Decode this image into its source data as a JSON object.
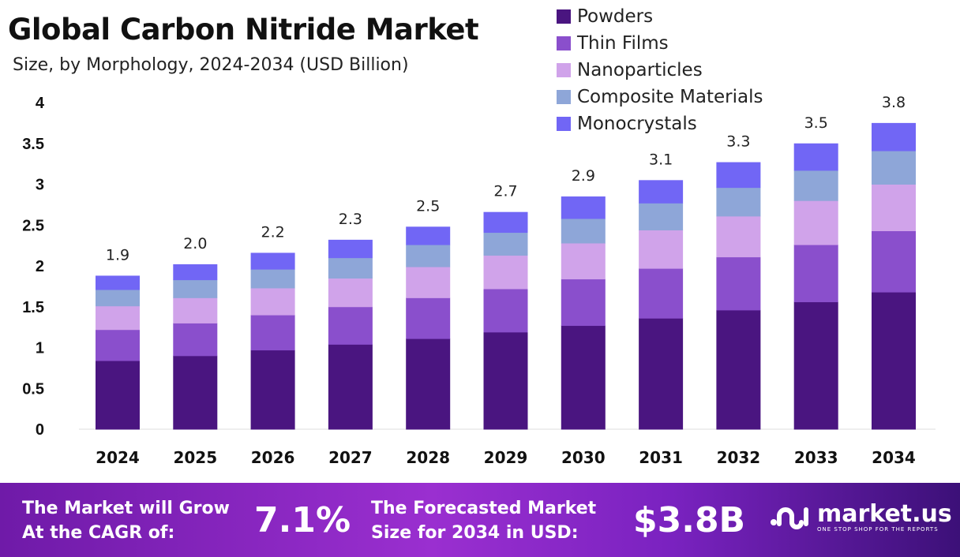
{
  "chart_data": {
    "type": "bar",
    "stacked": true,
    "title": "Global Carbon Nitride Market",
    "subtitle": "Size, by Morphology, 2024-2034 (USD Billion)",
    "categories": [
      "2024",
      "2025",
      "2026",
      "2027",
      "2028",
      "2029",
      "2030",
      "2031",
      "2032",
      "2033",
      "2034"
    ],
    "series": [
      {
        "name": "Powders",
        "color": "#4a1580",
        "values": [
          0.84,
          0.9,
          0.97,
          1.04,
          1.11,
          1.19,
          1.27,
          1.36,
          1.46,
          1.56,
          1.68
        ]
      },
      {
        "name": "Thin Films",
        "color": "#8a4fcc",
        "values": [
          0.38,
          0.4,
          0.43,
          0.46,
          0.5,
          0.53,
          0.57,
          0.61,
          0.65,
          0.7,
          0.75
        ]
      },
      {
        "name": "Nanoparticles",
        "color": "#d0a3ea",
        "values": [
          0.29,
          0.31,
          0.33,
          0.35,
          0.38,
          0.41,
          0.44,
          0.47,
          0.5,
          0.54,
          0.57
        ]
      },
      {
        "name": "Composite Materials",
        "color": "#8ea6d8",
        "values": [
          0.2,
          0.22,
          0.23,
          0.25,
          0.27,
          0.28,
          0.3,
          0.33,
          0.35,
          0.37,
          0.41
        ]
      },
      {
        "name": "Monocrystals",
        "color": "#7166f5",
        "values": [
          0.17,
          0.19,
          0.2,
          0.22,
          0.22,
          0.25,
          0.27,
          0.28,
          0.31,
          0.33,
          0.34
        ]
      }
    ],
    "total_labels": [
      "1.9",
      "2.0",
      "2.2",
      "2.3",
      "2.5",
      "2.7",
      "2.9",
      "3.1",
      "3.3",
      "3.5",
      "3.8"
    ],
    "yticks": [
      "0",
      "0.5",
      "1",
      "1.5",
      "2",
      "2.5",
      "3",
      "3.5",
      "4"
    ],
    "ylim": [
      0,
      4
    ],
    "legend_position": "top-right",
    "grid": false
  },
  "footer": {
    "cagr_label_1": "The Market will Grow",
    "cagr_label_2": "At the CAGR of:",
    "cagr_value": "7.1%",
    "forecast_label_1": "The Forecasted Market",
    "forecast_label_2": "Size for 2034 in USD:",
    "forecast_value": "$3.8B",
    "brand": "market.us",
    "tagline": "ONE STOP SHOP FOR THE REPORTS"
  }
}
